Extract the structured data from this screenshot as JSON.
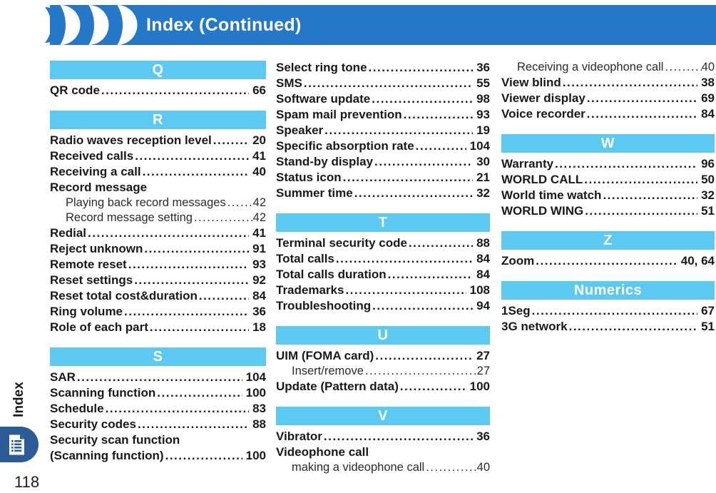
{
  "header": {
    "title": "Index (Continued)"
  },
  "sidebar": {
    "tab_label": "Index",
    "tab_icon": "document-list-icon",
    "page_number": "118"
  },
  "colors": {
    "header_bar": "#2578C8",
    "section_bar": "#5CC9F1",
    "sidebar_tab": "#2B5C96",
    "text": "#191919"
  },
  "columns": [
    {
      "blocks": [
        {
          "t": "bar",
          "label": "Q"
        },
        {
          "t": "e",
          "label": "QR code",
          "page": "66"
        },
        {
          "t": "bar",
          "label": "R"
        },
        {
          "t": "e",
          "label": "Radio waves reception level",
          "page": "20"
        },
        {
          "t": "e",
          "label": "Received calls",
          "page": "41"
        },
        {
          "t": "e",
          "label": "Receiving a call",
          "page": "40"
        },
        {
          "t": "e",
          "label": "Record message",
          "page": ""
        },
        {
          "t": "sub",
          "label": "Playing back record messages",
          "page": "42"
        },
        {
          "t": "sub",
          "label": "Record message setting",
          "page": "42"
        },
        {
          "t": "e",
          "label": "Redial",
          "page": "41"
        },
        {
          "t": "e",
          "label": "Reject unknown",
          "page": "91"
        },
        {
          "t": "e",
          "label": "Remote reset",
          "page": "93"
        },
        {
          "t": "e",
          "label": "Reset settings",
          "page": "92"
        },
        {
          "t": "e",
          "label": "Reset total cost&duration",
          "page": "84"
        },
        {
          "t": "e",
          "label": "Ring volume",
          "page": "36"
        },
        {
          "t": "e",
          "label": "Role of each part",
          "page": "18"
        },
        {
          "t": "bar",
          "label": "S"
        },
        {
          "t": "e",
          "label": "SAR",
          "page": "104"
        },
        {
          "t": "e",
          "label": "Scanning function",
          "page": "100"
        },
        {
          "t": "e",
          "label": "Schedule",
          "page": "83"
        },
        {
          "t": "e",
          "label": "Security codes",
          "page": "88"
        },
        {
          "t": "e",
          "label": "Security scan function",
          "page": ""
        },
        {
          "t": "e",
          "label": "(Scanning function)",
          "page": "100"
        }
      ]
    },
    {
      "blocks": [
        {
          "t": "e",
          "label": "Select ring tone",
          "page": "36"
        },
        {
          "t": "e",
          "label": "SMS",
          "page": "55"
        },
        {
          "t": "e",
          "label": "Software update",
          "page": "98"
        },
        {
          "t": "e",
          "label": "Spam mail prevention",
          "page": "93"
        },
        {
          "t": "e",
          "label": "Speaker",
          "page": "19"
        },
        {
          "t": "e",
          "label": "Specific absorption rate",
          "page": "104"
        },
        {
          "t": "e",
          "label": "Stand-by display",
          "page": "30"
        },
        {
          "t": "e",
          "label": "Status icon",
          "page": "21"
        },
        {
          "t": "e",
          "label": "Summer time",
          "page": "32"
        },
        {
          "t": "bar",
          "label": "T"
        },
        {
          "t": "e",
          "label": "Terminal security code",
          "page": "88"
        },
        {
          "t": "e",
          "label": "Total calls",
          "page": "84"
        },
        {
          "t": "e",
          "label": "Total calls duration",
          "page": "84"
        },
        {
          "t": "e",
          "label": "Trademarks",
          "page": "108"
        },
        {
          "t": "e",
          "label": "Troubleshooting",
          "page": "94"
        },
        {
          "t": "bar",
          "label": "U"
        },
        {
          "t": "e",
          "label": "UIM (FOMA card)",
          "page": "27"
        },
        {
          "t": "sub",
          "label": "Insert/remove",
          "page": "27"
        },
        {
          "t": "e",
          "label": "Update (Pattern data)",
          "page": "100"
        },
        {
          "t": "bar",
          "label": "V"
        },
        {
          "t": "e",
          "label": "Vibrator",
          "page": "36"
        },
        {
          "t": "e",
          "label": "Videophone call",
          "page": ""
        },
        {
          "t": "sub",
          "label": "making a videophone call",
          "page": "40"
        }
      ]
    },
    {
      "blocks": [
        {
          "t": "sub",
          "label": "Receiving a videophone call",
          "page": "40"
        },
        {
          "t": "e",
          "label": "View blind",
          "page": "38"
        },
        {
          "t": "e",
          "label": "Viewer display",
          "page": "69"
        },
        {
          "t": "e",
          "label": "Voice recorder",
          "page": "84"
        },
        {
          "t": "bar",
          "label": "W"
        },
        {
          "t": "e",
          "label": "Warranty",
          "page": "96"
        },
        {
          "t": "e",
          "label": "WORLD CALL",
          "page": "50"
        },
        {
          "t": "e",
          "label": "World time watch",
          "page": "32"
        },
        {
          "t": "e",
          "label": "WORLD WING",
          "page": "51"
        },
        {
          "t": "bar",
          "label": "Z"
        },
        {
          "t": "e",
          "label": "Zoom",
          "page": "40, 64"
        },
        {
          "t": "bar",
          "label": "Numerics"
        },
        {
          "t": "e",
          "label": "1Seg",
          "page": "67"
        },
        {
          "t": "e",
          "label": "3G network",
          "page": "51"
        }
      ]
    }
  ]
}
